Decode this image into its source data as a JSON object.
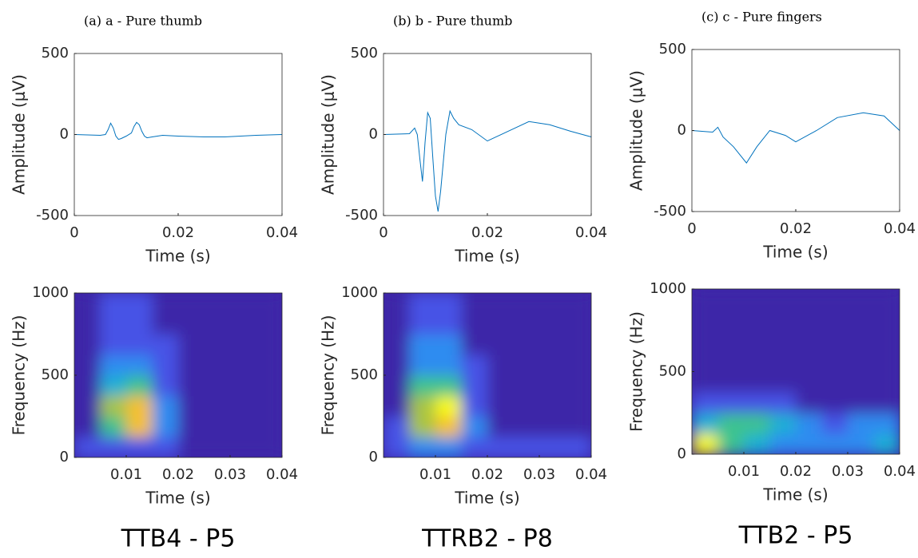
{
  "chart_data": [
    {
      "type": "line",
      "caption": "(a) a - Pure thumb",
      "color": "#0072bd",
      "x": [
        0,
        0.005,
        0.006,
        0.0065,
        0.007,
        0.0075,
        0.008,
        0.0085,
        0.009,
        0.01,
        0.011,
        0.0115,
        0.012,
        0.0125,
        0.013,
        0.0135,
        0.014,
        0.015,
        0.017,
        0.02,
        0.025,
        0.029,
        0.035,
        0.04
      ],
      "values": [
        0,
        -5,
        0,
        30,
        70,
        40,
        -10,
        -30,
        -25,
        -10,
        10,
        50,
        75,
        60,
        20,
        -10,
        -20,
        -15,
        -5,
        -10,
        -15,
        -15,
        -5,
        0
      ],
      "xlim": [
        0,
        0.04
      ],
      "ylim": [
        -500,
        500
      ],
      "xticks": [
        0,
        0.02,
        0.04
      ],
      "yticks": [
        -500,
        0,
        500
      ],
      "xlabel": "Time (s)",
      "ylabel": "Amplitude (μV)"
    },
    {
      "type": "line",
      "caption": "(b) b - Pure thumb",
      "color": "#0072bd",
      "x": [
        0,
        0.005,
        0.006,
        0.0065,
        0.007,
        0.0075,
        0.008,
        0.0085,
        0.009,
        0.0095,
        0.01,
        0.0105,
        0.011,
        0.012,
        0.0128,
        0.0135,
        0.0145,
        0.017,
        0.02,
        0.024,
        0.028,
        0.032,
        0.036,
        0.04
      ],
      "values": [
        0,
        5,
        40,
        0,
        -150,
        -290,
        -50,
        135,
        100,
        -150,
        -380,
        -475,
        -350,
        0,
        145,
        100,
        60,
        30,
        -40,
        20,
        80,
        60,
        20,
        -15
      ],
      "xlim": [
        0,
        0.04
      ],
      "ylim": [
        -500,
        500
      ],
      "xticks": [
        0,
        0.02,
        0.04
      ],
      "yticks": [
        -500,
        0,
        500
      ],
      "xlabel": "Time (s)",
      "ylabel": "Amplitude (μV)"
    },
    {
      "type": "line",
      "caption": "(c) c - Pure fingers",
      "color": "#0072bd",
      "x": [
        0,
        0.004,
        0.005,
        0.006,
        0.008,
        0.0105,
        0.0125,
        0.015,
        0.018,
        0.02,
        0.024,
        0.028,
        0.033,
        0.037,
        0.04
      ],
      "values": [
        0,
        -10,
        20,
        -40,
        -100,
        -200,
        -100,
        0,
        -30,
        -70,
        0,
        80,
        110,
        90,
        0
      ],
      "xlim": [
        0,
        0.04
      ],
      "ylim": [
        -500,
        500
      ],
      "xticks": [
        0,
        0.02,
        0.04
      ],
      "yticks": [
        -500,
        0,
        500
      ],
      "xlabel": "Time (s)",
      "ylabel": "Amplitude (μV)"
    },
    {
      "type": "heatmap",
      "label": "TTB4 - P5",
      "xlim": [
        0,
        0.04
      ],
      "ylim": [
        0,
        1000
      ],
      "xticks": [
        0.01,
        0.02,
        0.03,
        0.04
      ],
      "yticks": [
        0,
        500,
        1000
      ],
      "xlabel": "Time (s)",
      "ylabel": "Frequency (Hz)",
      "colormap": [
        "#3e26a8",
        "#4653e6",
        "#2e8cf0",
        "#1bb0d4",
        "#3ec38f",
        "#a8c443",
        "#f5c02d",
        "#f9fb0e"
      ],
      "z": [
        [
          0.1,
          0.15,
          0.15,
          0.1,
          0.05,
          0.05,
          0.05,
          0.05
        ],
        [
          0.05,
          0.6,
          0.8,
          0.3,
          0.05,
          0,
          0,
          0
        ],
        [
          0.05,
          0.7,
          0.9,
          0.3,
          0.05,
          0,
          0,
          0
        ],
        [
          0.05,
          0.4,
          0.5,
          0.2,
          0,
          0,
          0,
          0
        ],
        [
          0,
          0.3,
          0.3,
          0.15,
          0,
          0,
          0,
          0
        ],
        [
          0,
          0.2,
          0.2,
          0.1,
          0,
          0,
          0,
          0
        ],
        [
          0,
          0.15,
          0.15,
          0.05,
          0,
          0,
          0,
          0
        ],
        [
          0,
          0.1,
          0.1,
          0,
          0,
          0,
          0,
          0
        ]
      ]
    },
    {
      "type": "heatmap",
      "label": "TTRB2 - P8",
      "xlim": [
        0,
        0.04
      ],
      "ylim": [
        0,
        1000
      ],
      "xticks": [
        0.01,
        0.02,
        0.03,
        0.04
      ],
      "yticks": [
        0,
        500,
        1000
      ],
      "xlabel": "Time (s)",
      "ylabel": "Frequency (Hz)",
      "colormap": [
        "#3e26a8",
        "#4653e6",
        "#2e8cf0",
        "#1bb0d4",
        "#3ec38f",
        "#a8c443",
        "#f5c02d",
        "#f9fb0e"
      ],
      "z": [
        [
          0.2,
          0.3,
          0.3,
          0.15,
          0.1,
          0.1,
          0.1,
          0.1
        ],
        [
          0.1,
          0.7,
          0.9,
          0.3,
          0.05,
          0,
          0,
          0
        ],
        [
          0.05,
          0.7,
          0.95,
          0.2,
          0,
          0,
          0,
          0
        ],
        [
          0.05,
          0.5,
          0.5,
          0.1,
          0,
          0,
          0,
          0
        ],
        [
          0,
          0.35,
          0.35,
          0.1,
          0,
          0,
          0,
          0
        ],
        [
          0,
          0.25,
          0.25,
          0.05,
          0,
          0,
          0,
          0
        ],
        [
          0,
          0.2,
          0.2,
          0,
          0,
          0,
          0,
          0
        ],
        [
          0,
          0.15,
          0.15,
          0,
          0,
          0,
          0,
          0
        ]
      ]
    },
    {
      "type": "heatmap",
      "label": "TTB2 - P5",
      "xlim": [
        0,
        0.04
      ],
      "ylim": [
        0,
        1000
      ],
      "xticks": [
        0.01,
        0.02,
        0.03,
        0.04
      ],
      "yticks": [
        0,
        500,
        1000
      ],
      "xlabel": "Time (s)",
      "ylabel": "Frequency (Hz)",
      "colormap": [
        "#3e26a8",
        "#4653e6",
        "#2e8cf0",
        "#1bb0d4",
        "#3ec38f",
        "#a8c443",
        "#f5c02d",
        "#f9fb0e"
      ],
      "z": [
        [
          0.95,
          0.5,
          0.45,
          0.35,
          0.3,
          0.3,
          0.35,
          0.4
        ],
        [
          0.4,
          0.5,
          0.6,
          0.45,
          0.3,
          0.2,
          0.3,
          0.3
        ],
        [
          0.1,
          0.15,
          0.15,
          0.1,
          0.05,
          0.05,
          0.05,
          0.05
        ],
        [
          0.05,
          0.05,
          0.05,
          0,
          0,
          0,
          0,
          0
        ],
        [
          0,
          0.05,
          0,
          0,
          0,
          0,
          0,
          0
        ],
        [
          0,
          0,
          0,
          0,
          0,
          0,
          0,
          0
        ],
        [
          0,
          0,
          0,
          0,
          0,
          0,
          0,
          0
        ],
        [
          0,
          0,
          0,
          0,
          0,
          0,
          0,
          0
        ]
      ]
    }
  ]
}
